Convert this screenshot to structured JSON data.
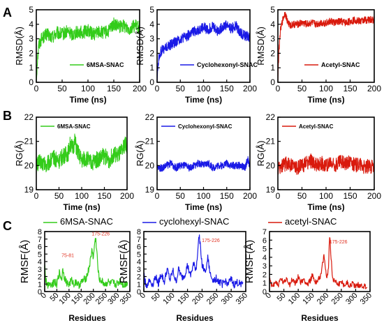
{
  "colors": {
    "green": "#33cc1a",
    "blue": "#1a1ae6",
    "red": "#d91a0d",
    "annotation": "#e03020",
    "axis": "#000000"
  },
  "panel_labels": [
    "A",
    "B",
    "C"
  ],
  "chart_data": [
    {
      "id": "A1",
      "row": "A",
      "type": "line",
      "ylabel": "RMSD(Å)",
      "xlabel": "Time (ns)",
      "xlim": [
        0,
        200
      ],
      "ylim": [
        0,
        5
      ],
      "xticks": [
        0,
        50,
        100,
        150,
        200
      ],
      "yticks": [
        0,
        1,
        2,
        3,
        4,
        5
      ],
      "legend": "6MSA-SNAC",
      "legend_position": "bottom-right",
      "series": [
        {
          "name": "6MSA-SNAC",
          "color": "#33cc1a",
          "noise": 0.45,
          "x": [
            0,
            2,
            5,
            10,
            20,
            30,
            40,
            50,
            60,
            70,
            80,
            90,
            100,
            110,
            120,
            130,
            140,
            145,
            150,
            160,
            170,
            180,
            190,
            200
          ],
          "values": [
            0.2,
            1.5,
            2.6,
            3.0,
            3.3,
            3.1,
            3.4,
            3.3,
            3.5,
            3.3,
            3.5,
            3.4,
            3.6,
            3.3,
            3.5,
            3.4,
            3.5,
            3.8,
            4.0,
            3.8,
            3.9,
            3.7,
            3.9,
            3.8
          ]
        }
      ],
      "annotations": []
    },
    {
      "id": "A2",
      "row": "A",
      "type": "line",
      "ylabel": "RMSD(Å)",
      "xlabel": "Time (ns)",
      "xlim": [
        0,
        200
      ],
      "ylim": [
        0,
        5
      ],
      "xticks": [
        0,
        50,
        100,
        150,
        200
      ],
      "yticks": [
        0,
        1,
        2,
        3,
        4,
        5
      ],
      "legend": "Cyclohexonyl-SNAC",
      "legend_position": "bottom-right",
      "series": [
        {
          "name": "Cyclohexonyl-SNAC",
          "color": "#1a1ae6",
          "noise": 0.35,
          "x": [
            0,
            2,
            5,
            10,
            20,
            30,
            40,
            50,
            60,
            70,
            80,
            90,
            100,
            110,
            120,
            130,
            140,
            150,
            160,
            170,
            180,
            190,
            200
          ],
          "values": [
            0.2,
            1.2,
            1.9,
            2.2,
            2.4,
            2.6,
            2.8,
            3.0,
            3.1,
            3.3,
            3.5,
            3.6,
            3.8,
            3.6,
            3.9,
            3.5,
            3.8,
            4.0,
            3.7,
            3.9,
            3.4,
            3.2,
            3.1
          ]
        }
      ],
      "annotations": []
    },
    {
      "id": "A3",
      "row": "A",
      "type": "line",
      "ylabel": "RMSD(Å)",
      "xlabel": "Time (ns)",
      "xlim": [
        0,
        200
      ],
      "ylim": [
        0,
        5
      ],
      "xticks": [
        0,
        50,
        100,
        150,
        200
      ],
      "yticks": [
        0,
        1,
        2,
        3,
        4,
        5
      ],
      "legend": "Acetyl-SNAC",
      "legend_position": "bottom-right",
      "series": [
        {
          "name": "Acetyl-SNAC",
          "color": "#d91a0d",
          "noise": 0.25,
          "x": [
            0,
            2,
            5,
            10,
            15,
            20,
            25,
            30,
            40,
            50,
            60,
            70,
            80,
            90,
            100,
            110,
            120,
            130,
            140,
            150,
            160,
            170,
            180,
            190,
            200
          ],
          "values": [
            0.2,
            2.0,
            3.5,
            4.3,
            4.8,
            4.2,
            3.9,
            4.0,
            4.0,
            4.1,
            4.0,
            4.1,
            4.0,
            4.1,
            4.1,
            4.2,
            4.1,
            4.2,
            4.1,
            4.2,
            4.3,
            4.2,
            4.3,
            4.3,
            4.3
          ]
        }
      ],
      "annotations": []
    },
    {
      "id": "B1",
      "row": "B",
      "type": "line",
      "ylabel": "RG(Å)",
      "xlabel": "Time (ns)",
      "xlim": [
        0,
        200
      ],
      "ylim": [
        19,
        22
      ],
      "xticks": [
        0,
        50,
        100,
        150,
        200
      ],
      "yticks": [
        19,
        20,
        21,
        22
      ],
      "legend": "6MSA-SNAC",
      "legend_position": "top-left",
      "series": [
        {
          "name": "6MSA-SNAC",
          "color": "#33cc1a",
          "noise": 0.35,
          "x": [
            0,
            10,
            20,
            30,
            40,
            50,
            60,
            70,
            75,
            80,
            85,
            90,
            95,
            100,
            110,
            120,
            130,
            140,
            150,
            160,
            170,
            180,
            190,
            195,
            200
          ],
          "values": [
            20.0,
            20.2,
            20.0,
            20.2,
            20.3,
            20.2,
            20.4,
            20.5,
            20.9,
            20.7,
            21.0,
            20.6,
            20.4,
            20.2,
            20.3,
            20.1,
            20.2,
            20.3,
            20.4,
            20.2,
            20.5,
            20.4,
            20.6,
            20.9,
            20.8
          ]
        }
      ],
      "annotations": []
    },
    {
      "id": "B2",
      "row": "B",
      "type": "line",
      "ylabel": "RG(Å)",
      "xlabel": "Time (ns)",
      "xlim": [
        0,
        200
      ],
      "ylim": [
        19,
        22
      ],
      "xticks": [
        0,
        50,
        100,
        150,
        200
      ],
      "yticks": [
        19,
        20,
        21,
        22
      ],
      "legend": "Cyclohexonyl-SNAC",
      "legend_position": "top-left",
      "series": [
        {
          "name": "Cyclohexonyl-SNAC",
          "color": "#1a1ae6",
          "noise": 0.15,
          "x": [
            0,
            10,
            20,
            30,
            40,
            50,
            60,
            70,
            80,
            90,
            100,
            110,
            120,
            130,
            140,
            150,
            160,
            170,
            180,
            190,
            195,
            200
          ],
          "values": [
            19.9,
            19.9,
            20.0,
            20.1,
            19.9,
            20.0,
            20.0,
            19.9,
            20.0,
            20.1,
            20.0,
            20.1,
            19.9,
            20.0,
            20.0,
            20.1,
            20.0,
            20.0,
            20.0,
            19.9,
            20.3,
            19.9
          ]
        }
      ],
      "annotations": []
    },
    {
      "id": "B3",
      "row": "B",
      "type": "line",
      "ylabel": "RG(Å)",
      "xlabel": "Time (ns)",
      "xlim": [
        0,
        200
      ],
      "ylim": [
        19,
        22
      ],
      "xticks": [
        0,
        50,
        100,
        150,
        200
      ],
      "yticks": [
        19,
        20,
        21,
        22
      ],
      "legend": "Acetyl-SNAC",
      "legend_position": "top-left",
      "series": [
        {
          "name": "Acetyl-SNAC",
          "color": "#d91a0d",
          "noise": 0.3,
          "x": [
            0,
            10,
            20,
            30,
            40,
            50,
            60,
            70,
            80,
            90,
            100,
            110,
            120,
            130,
            140,
            150,
            160,
            170,
            180,
            190,
            200
          ],
          "values": [
            19.9,
            20.0,
            20.1,
            20.0,
            19.9,
            20.0,
            20.1,
            20.2,
            20.0,
            20.1,
            20.0,
            20.1,
            20.0,
            20.2,
            20.1,
            20.2,
            20.0,
            20.1,
            19.9,
            20.0,
            19.9
          ]
        }
      ],
      "annotations": []
    },
    {
      "id": "C1",
      "row": "C",
      "type": "line",
      "ylabel": "RMSF(Å)",
      "xlabel": "Residues",
      "xlim": [
        0,
        350
      ],
      "ylim": [
        0,
        8
      ],
      "xticks": [
        0,
        50,
        100,
        150,
        200,
        250,
        300,
        350
      ],
      "yticks": [
        0,
        1,
        2,
        3,
        4,
        5,
        6,
        7,
        8
      ],
      "legend": "6MSA-SNAC",
      "legend_position": "top",
      "series": [
        {
          "name": "6MSA-SNAC",
          "color": "#33cc1a",
          "noise": 0.5,
          "x": [
            0,
            5,
            10,
            20,
            30,
            40,
            50,
            60,
            70,
            75,
            80,
            90,
            100,
            110,
            120,
            130,
            140,
            150,
            160,
            170,
            180,
            190,
            195,
            200,
            205,
            210,
            215,
            220,
            225,
            230,
            240,
            250,
            260,
            270,
            280,
            290,
            300,
            310,
            320,
            330,
            340
          ],
          "values": [
            3.5,
            1.5,
            0.8,
            1.2,
            0.9,
            1.4,
            1.0,
            2.5,
            1.6,
            3.2,
            2.0,
            1.2,
            0.9,
            1.5,
            1.0,
            1.3,
            0.8,
            1.2,
            1.5,
            1.8,
            2.8,
            4.5,
            5.8,
            4.2,
            6.5,
            7.0,
            5.0,
            2.5,
            1.8,
            1.5,
            1.2,
            0.9,
            1.3,
            1.0,
            1.2,
            0.9,
            1.1,
            1.4,
            1.0,
            0.8,
            1.3
          ]
        }
      ],
      "annotations": [
        {
          "text": "175-226",
          "x": 230,
          "y": 7.5
        },
        {
          "text": "75-81",
          "x": 95,
          "y": 4.6
        }
      ]
    },
    {
      "id": "C2",
      "row": "C",
      "type": "line",
      "ylabel": "RMSF(Å)",
      "xlabel": "Residues",
      "xlim": [
        0,
        350
      ],
      "ylim": [
        0,
        8
      ],
      "xticks": [
        0,
        50,
        100,
        150,
        200,
        250,
        300,
        350
      ],
      "yticks": [
        0,
        1,
        2,
        3,
        4,
        5,
        6,
        7,
        8
      ],
      "legend": "cyclohexyl-SNAC",
      "legend_position": "top",
      "series": [
        {
          "name": "cyclohexyl-SNAC",
          "color": "#1a1ae6",
          "noise": 0.5,
          "x": [
            0,
            5,
            10,
            20,
            30,
            40,
            50,
            60,
            70,
            80,
            90,
            100,
            110,
            120,
            130,
            140,
            150,
            160,
            170,
            180,
            185,
            190,
            195,
            200,
            210,
            220,
            225,
            230,
            240,
            250,
            260,
            270,
            280,
            290,
            300,
            310,
            320,
            330,
            340
          ],
          "values": [
            2.5,
            1.2,
            0.8,
            1.5,
            0.9,
            2.0,
            1.1,
            2.4,
            1.2,
            3.0,
            1.5,
            2.8,
            1.2,
            3.0,
            1.8,
            2.2,
            3.5,
            2.0,
            3.6,
            3.0,
            5.5,
            7.5,
            6.0,
            3.5,
            2.5,
            4.5,
            3.0,
            2.0,
            1.5,
            1.8,
            1.2,
            1.0,
            1.4,
            1.1,
            1.6,
            0.9,
            1.2,
            1.0,
            1.3
          ]
        }
      ],
      "annotations": [
        {
          "text": "175-226",
          "x": 230,
          "y": 6.6
        }
      ]
    },
    {
      "id": "C3",
      "row": "C",
      "type": "line",
      "ylabel": "RMSF(Å)",
      "xlabel": "Residues",
      "xlim": [
        0,
        350
      ],
      "ylim": [
        0,
        7
      ],
      "xticks": [
        0,
        50,
        100,
        150,
        200,
        250,
        300,
        350
      ],
      "yticks": [
        0,
        1,
        2,
        3,
        4,
        5,
        6,
        7
      ],
      "legend": "acetyl-SNAC",
      "legend_position": "top",
      "series": [
        {
          "name": "acetyl-SNAC",
          "color": "#d91a0d",
          "noise": 0.35,
          "x": [
            0,
            5,
            10,
            20,
            30,
            40,
            50,
            60,
            70,
            80,
            90,
            100,
            110,
            120,
            130,
            140,
            150,
            160,
            170,
            180,
            185,
            190,
            195,
            200,
            205,
            210,
            215,
            220,
            230,
            240,
            250,
            260,
            270,
            280,
            290,
            300,
            310,
            320,
            330,
            340
          ],
          "values": [
            1.5,
            0.8,
            0.6,
            1.2,
            0.7,
            1.5,
            0.9,
            1.6,
            0.8,
            1.4,
            0.9,
            1.8,
            1.0,
            1.5,
            0.8,
            1.2,
            1.9,
            1.0,
            1.5,
            2.0,
            3.2,
            4.2,
            2.5,
            1.5,
            2.8,
            6.8,
            3.5,
            1.5,
            1.2,
            0.9,
            1.1,
            0.8,
            1.0,
            0.7,
            0.9,
            0.6,
            0.8,
            0.7,
            0.6,
            0.5
          ]
        }
      ],
      "annotations": [
        {
          "text": "175-226",
          "x": 240,
          "y": 5.6
        }
      ]
    }
  ]
}
